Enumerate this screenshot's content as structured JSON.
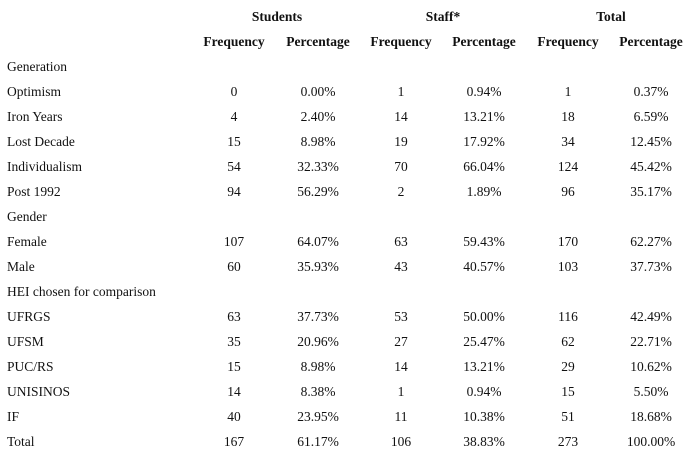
{
  "table": {
    "groups": [
      "Students",
      "Staff*",
      "Total"
    ],
    "subheaders": [
      "Frequency",
      "Percentage",
      "Frequency",
      "Percentage",
      "Frequency",
      "Percentage"
    ],
    "rows": [
      {
        "label": "Generation"
      },
      {
        "label": "Optimism",
        "cells": [
          "0",
          "0.00%",
          "1",
          "0.94%",
          "1",
          "0.37%"
        ]
      },
      {
        "label": "Iron Years",
        "cells": [
          "4",
          "2.40%",
          "14",
          "13.21%",
          "18",
          "6.59%"
        ]
      },
      {
        "label": "Lost Decade",
        "cells": [
          "15",
          "8.98%",
          "19",
          "17.92%",
          "34",
          "12.45%"
        ]
      },
      {
        "label": "Individualism",
        "cells": [
          "54",
          "32.33%",
          "70",
          "66.04%",
          "124",
          "45.42%"
        ]
      },
      {
        "label": "Post 1992",
        "cells": [
          "94",
          "56.29%",
          "2",
          "1.89%",
          "96",
          "35.17%"
        ]
      },
      {
        "label": "Gender"
      },
      {
        "label": "Female",
        "cells": [
          "107",
          "64.07%",
          "63",
          "59.43%",
          "170",
          "62.27%"
        ]
      },
      {
        "label": "Male",
        "cells": [
          "60",
          "35.93%",
          "43",
          "40.57%",
          "103",
          "37.73%"
        ]
      },
      {
        "label": "HEI chosen for comparison"
      },
      {
        "label": "UFRGS",
        "cells": [
          "63",
          "37.73%",
          "53",
          "50.00%",
          "116",
          "42.49%"
        ]
      },
      {
        "label": "UFSM",
        "cells": [
          "35",
          "20.96%",
          "27",
          "25.47%",
          "62",
          "22.71%"
        ]
      },
      {
        "label": "PUC/RS",
        "cells": [
          "15",
          "8.98%",
          "14",
          "13.21%",
          "29",
          "10.62%"
        ]
      },
      {
        "label": "UNISINOS",
        "cells": [
          "14",
          "8.38%",
          "1",
          "0.94%",
          "15",
          "5.50%"
        ]
      },
      {
        "label": "IF",
        "cells": [
          "40",
          "23.95%",
          "11",
          "10.38%",
          "51",
          "18.68%"
        ]
      },
      {
        "label": "Total",
        "cells": [
          "167",
          "61.17%",
          "106",
          "38.83%",
          "273",
          "100.00%"
        ]
      }
    ]
  }
}
